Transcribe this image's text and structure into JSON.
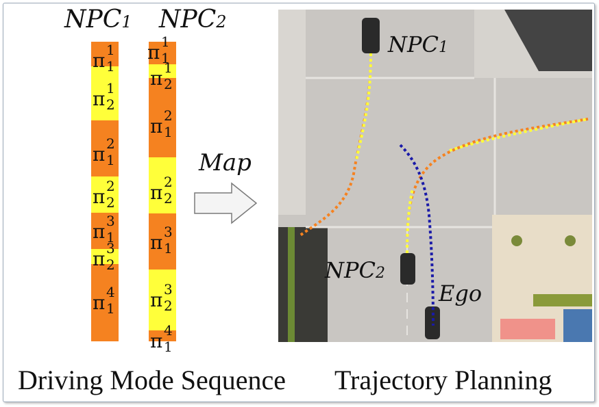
{
  "colors": {
    "mode_orange": "#f58220",
    "mode_yellow": "#ffff3a",
    "trajectory_blue": "#1a1aa8"
  },
  "left": {
    "npc1_header": {
      "base": "NPC",
      "sub": "1"
    },
    "npc2_header": {
      "base": "NPC",
      "sub": "2"
    },
    "col1": [
      {
        "symbol": "π",
        "sup": "1",
        "sub": "1",
        "mode": "orange"
      },
      {
        "symbol": "π",
        "sup": "1",
        "sub": "2",
        "mode": "yellow"
      },
      {
        "symbol": "π",
        "sup": "2",
        "sub": "1",
        "mode": "orange"
      },
      {
        "symbol": "π",
        "sup": "2",
        "sub": "2",
        "mode": "yellow"
      },
      {
        "symbol": "π",
        "sup": "3",
        "sub": "1",
        "mode": "orange"
      },
      {
        "symbol": "π",
        "sup": "3",
        "sub": "2",
        "mode": "yellow"
      },
      {
        "symbol": "π",
        "sup": "4",
        "sub": "1",
        "mode": "orange"
      }
    ],
    "col2": [
      {
        "symbol": "π",
        "sup": "1",
        "sub": "1",
        "mode": "orange"
      },
      {
        "symbol": "π",
        "sup": "1",
        "sub": "2",
        "mode": "yellow"
      },
      {
        "symbol": "π",
        "sup": "2",
        "sub": "1",
        "mode": "orange"
      },
      {
        "symbol": "π",
        "sup": "2",
        "sub": "2",
        "mode": "yellow"
      },
      {
        "symbol": "π",
        "sup": "3",
        "sub": "1",
        "mode": "orange"
      },
      {
        "symbol": "π",
        "sup": "3",
        "sub": "2",
        "mode": "yellow"
      },
      {
        "symbol": "π",
        "sup": "4",
        "sub": "1",
        "mode": "orange"
      }
    ]
  },
  "arrow_label": "Map",
  "scene": {
    "npc1_label": {
      "base": "NPC",
      "sub": "1"
    },
    "npc2_label": {
      "base": "NPC",
      "sub": "2"
    },
    "ego_label": "Ego"
  },
  "captions": {
    "left": "Driving Mode Sequence",
    "right": "Trajectory Planning"
  }
}
